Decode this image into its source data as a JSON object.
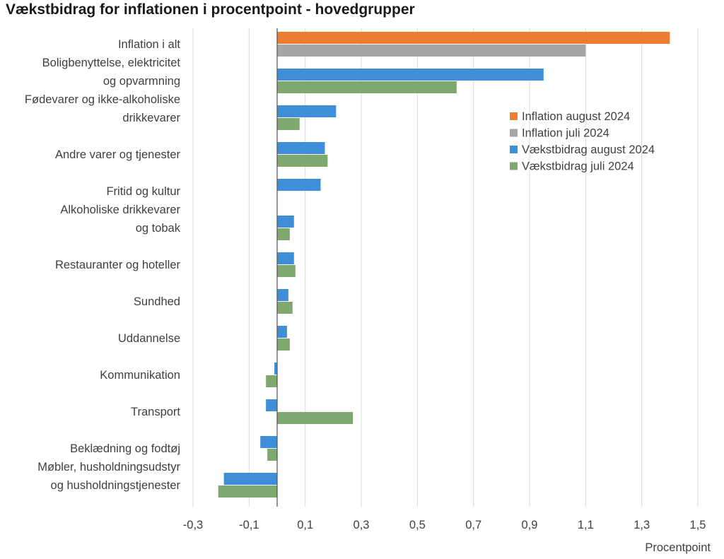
{
  "chart_data": {
    "type": "bar",
    "orientation": "horizontal",
    "title": "Vækstbidrag for inflationen i procentpoint - hovedgrupper",
    "xlabel": "Procentpoint",
    "ylabel": "",
    "xlim": [
      -0.3,
      1.5
    ],
    "xticks": [
      -0.3,
      -0.1,
      0.1,
      0.3,
      0.5,
      0.7,
      0.9,
      1.1,
      1.3,
      1.5
    ],
    "xtick_labels": [
      "-0,3",
      "-0,1",
      "0,1",
      "0,3",
      "0,5",
      "0,7",
      "0,9",
      "1,1",
      "1,3",
      "1,5"
    ],
    "grid": "vertical",
    "legend_position": "right",
    "categories": [
      [
        "Inflation i alt"
      ],
      [
        "Boligbenyttelse, elektricitet",
        "og opvarmning"
      ],
      [
        "Fødevarer og ikke-alkoholiske",
        "drikkevarer"
      ],
      [
        "Andre varer og tjenester"
      ],
      [
        "Fritid og kultur"
      ],
      [
        "Alkoholiske drikkevarer",
        "og tobak"
      ],
      [
        "Restauranter og hoteller"
      ],
      [
        "Sundhed"
      ],
      [
        "Uddannelse"
      ],
      [
        "Kommunikation"
      ],
      [
        "Transport"
      ],
      [
        "Beklædning og fodtøj"
      ],
      [
        "Møbler, husholdningsudstyr",
        "og husholdningstjenester"
      ]
    ],
    "series": [
      {
        "name": "Inflation august 2024",
        "color": "#ED7D31",
        "values": [
          1.4,
          null,
          null,
          null,
          null,
          null,
          null,
          null,
          null,
          null,
          null,
          null,
          null
        ]
      },
      {
        "name": "Inflation juli 2024",
        "color": "#A5A5A5",
        "values": [
          1.1,
          null,
          null,
          null,
          null,
          null,
          null,
          null,
          null,
          null,
          null,
          null,
          null
        ]
      },
      {
        "name": "Vækstbidrag august 2024",
        "color": "#3E8FD8",
        "values": [
          null,
          0.95,
          0.21,
          0.17,
          0.155,
          0.06,
          0.06,
          0.04,
          0.035,
          -0.01,
          -0.04,
          -0.06,
          -0.19
        ]
      },
      {
        "name": "Vækstbidrag juli 2024",
        "color": "#7FA870",
        "values": [
          null,
          0.64,
          0.08,
          0.18,
          0.0,
          0.045,
          0.065,
          0.055,
          0.045,
          -0.04,
          0.27,
          -0.035,
          -0.21
        ]
      }
    ]
  }
}
